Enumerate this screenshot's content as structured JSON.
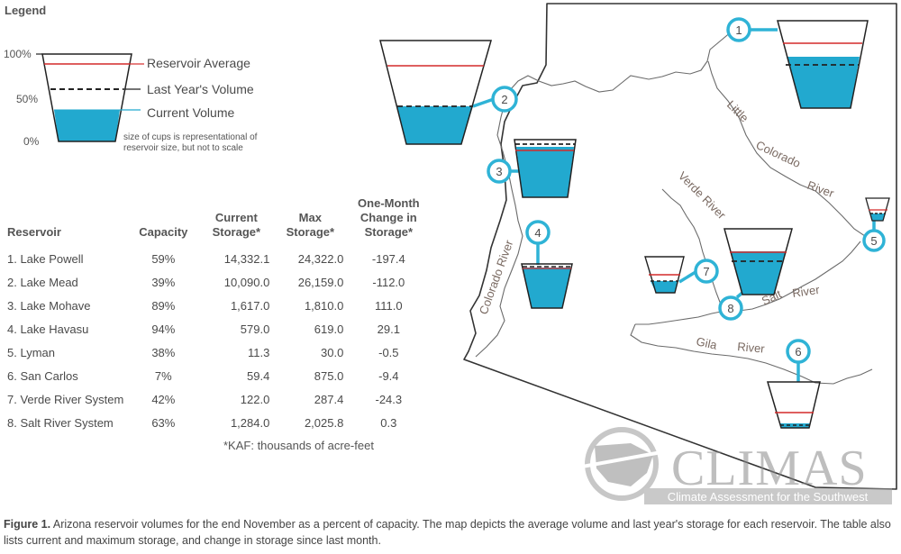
{
  "legend": {
    "title": "Legend",
    "pct_100": "100%",
    "pct_50": "50%",
    "pct_0": "0%",
    "reservoir_average": "Reservoir Average",
    "last_year": "Last Year's Volume",
    "current": "Current Volume",
    "note_line1": "size of cups is representational of",
    "note_line2": "reservoir size, but not to scale"
  },
  "table": {
    "headers": {
      "reservoir": "Reservoir",
      "capacity": "Capacity",
      "current_1": "Current",
      "current_2": "Storage*",
      "max_1": "Max",
      "max_2": "Storage*",
      "change_1": "One-Month",
      "change_2": "Change in",
      "change_3": "Storage*"
    },
    "rows": [
      {
        "name": "1. Lake Powell",
        "capacity": "59%",
        "current": "14,332.1",
        "max": "24,322.0",
        "change": "-197.4"
      },
      {
        "name": "2. Lake Mead",
        "capacity": "39%",
        "current": "10,090.0",
        "max": "26,159.0",
        "change": "-112.0"
      },
      {
        "name": "3. Lake Mohave",
        "capacity": "89%",
        "current": "1,617.0",
        "max": "1,810.0",
        "change": "111.0"
      },
      {
        "name": "4. Lake Havasu",
        "capacity": "94%",
        "current": "579.0",
        "max": "619.0",
        "change": "29.1"
      },
      {
        "name": "5. Lyman",
        "capacity": "38%",
        "current": "11.3",
        "max": "30.0",
        "change": "-0.5"
      },
      {
        "name": "6. San Carlos",
        "capacity": "7%",
        "current": "59.4",
        "max": "875.0",
        "change": "-9.4"
      },
      {
        "name": "7. Verde River System",
        "capacity": "42%",
        "current": "122.0",
        "max": "287.4",
        "change": "-24.3"
      },
      {
        "name": "8. Salt River System",
        "capacity": "63%",
        "current": "1,284.0",
        "max": "2,025.8",
        "change": "0.3"
      }
    ],
    "footnote": "*KAF: thousands of acre-feet"
  },
  "map": {
    "rivers": {
      "little": "Little",
      "colorado_upper": "Colorado",
      "river_upper": "River",
      "verde": "Verde River",
      "colorado_left": "Colorado River",
      "salt": "Salt",
      "salt_river": "River",
      "gila": "Gila",
      "gila_river": "River"
    },
    "markers": [
      "1",
      "2",
      "3",
      "4",
      "5",
      "6",
      "7",
      "8"
    ]
  },
  "logo": {
    "name": "CLIMAS",
    "tagline": "Climate Assessment for the Southwest"
  },
  "caption": {
    "figure_label": "Figure 1.",
    "text": " Arizona reservoir volumes for the end November as a percent of capacity. The map depicts the average volume and last year's storage for each reservoir. The table also lists current and maximum storage, and change in storage since last month."
  },
  "colors": {
    "water": "#22a9cf",
    "average_line": "#d42a2a",
    "marker": "#2fb3d6",
    "map_border": "#333333",
    "river": "#6b6b6b",
    "river_label": "#7a6a62"
  }
}
